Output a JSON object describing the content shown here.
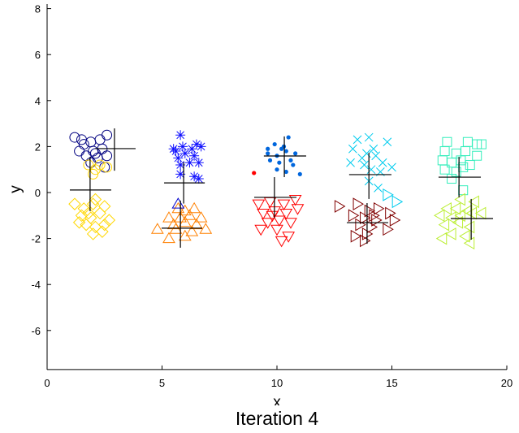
{
  "chart_data": {
    "type": "scatter",
    "title": "Iteration 4",
    "xlabel": "x",
    "ylabel": "y",
    "xlim": [
      0,
      20
    ],
    "ylim": [
      -7.7,
      8.2
    ],
    "xticks": [
      "0",
      "5",
      "10",
      "15",
      "20"
    ],
    "yticks": [
      "-6",
      "-4",
      "-2",
      "0",
      "2",
      "4",
      "6",
      "8"
    ],
    "grid": false,
    "box": false,
    "series": [
      {
        "marker": "circle",
        "color": "#000080",
        "points": [
          [
            1.2,
            2.4
          ],
          [
            1.6,
            2.1
          ],
          [
            1.9,
            2.2
          ],
          [
            2.3,
            2.3
          ],
          [
            2.6,
            2.5
          ],
          [
            1.4,
            1.8
          ],
          [
            2.0,
            1.8
          ],
          [
            2.4,
            1.9
          ],
          [
            1.7,
            1.6
          ],
          [
            2.2,
            1.5
          ],
          [
            2.6,
            1.6
          ],
          [
            1.9,
            1.3
          ],
          [
            2.5,
            1.1
          ],
          [
            2.1,
            1.7
          ],
          [
            1.5,
            2.3
          ]
        ]
      },
      {
        "marker": "circle",
        "color": "#FFD700",
        "points": [
          [
            1.8,
            1.2
          ],
          [
            2.1,
            1.0
          ],
          [
            2.3,
            1.2
          ],
          [
            2.0,
            0.8
          ],
          [
            2.6,
            1.1
          ]
        ]
      },
      {
        "marker": "diamond",
        "color": "#FFD700",
        "points": [
          [
            1.2,
            -0.5
          ],
          [
            1.6,
            -0.7
          ],
          [
            2.0,
            -0.5
          ],
          [
            2.5,
            -0.6
          ],
          [
            1.5,
            -1.0
          ],
          [
            1.9,
            -1.1
          ],
          [
            2.3,
            -0.9
          ],
          [
            2.7,
            -1.2
          ],
          [
            1.7,
            -1.4
          ],
          [
            2.1,
            -1.5
          ],
          [
            2.5,
            -1.4
          ],
          [
            1.4,
            -1.3
          ],
          [
            2.0,
            -1.8
          ],
          [
            2.4,
            -1.7
          ],
          [
            2.1,
            -0.3
          ],
          [
            1.8,
            -0.9
          ]
        ]
      },
      {
        "marker": "star",
        "color": "#1010FF",
        "points": [
          [
            5.8,
            2.5
          ],
          [
            5.5,
            1.9
          ],
          [
            5.9,
            2.0
          ],
          [
            6.3,
            1.9
          ],
          [
            6.7,
            2.0
          ],
          [
            5.7,
            1.5
          ],
          [
            6.0,
            1.7
          ],
          [
            6.4,
            1.6
          ],
          [
            5.8,
            1.2
          ],
          [
            6.2,
            1.3
          ],
          [
            6.6,
            1.3
          ],
          [
            5.8,
            0.8
          ],
          [
            6.4,
            0.7
          ],
          [
            6.6,
            0.6
          ],
          [
            5.6,
            1.8
          ],
          [
            6.5,
            2.1
          ]
        ]
      },
      {
        "marker": "triangle-up",
        "color": "#FF8000",
        "points": [
          [
            5.7,
            -0.7
          ],
          [
            6.0,
            -0.8
          ],
          [
            6.4,
            -0.7
          ],
          [
            5.3,
            -1.1
          ],
          [
            5.8,
            -1.1
          ],
          [
            6.2,
            -1.0
          ],
          [
            6.7,
            -1.1
          ],
          [
            5.5,
            -1.4
          ],
          [
            6.0,
            -1.3
          ],
          [
            6.5,
            -1.4
          ],
          [
            4.8,
            -1.6
          ],
          [
            5.6,
            -1.6
          ],
          [
            6.3,
            -1.7
          ],
          [
            5.3,
            -2.0
          ],
          [
            6.0,
            -1.9
          ],
          [
            6.9,
            -1.6
          ]
        ]
      },
      {
        "marker": "triangle-up",
        "color": "#0000CC",
        "points": [
          [
            5.7,
            -0.5
          ]
        ]
      },
      {
        "marker": "dot",
        "color": "#0066DD",
        "points": [
          [
            10.5,
            2.4
          ],
          [
            9.9,
            2.1
          ],
          [
            10.3,
            2.0
          ],
          [
            9.6,
            1.9
          ],
          [
            10.0,
            1.6
          ],
          [
            10.4,
            1.8
          ],
          [
            10.8,
            1.7
          ],
          [
            9.7,
            1.4
          ],
          [
            10.1,
            1.3
          ],
          [
            10.6,
            1.4
          ],
          [
            10.0,
            1.0
          ],
          [
            10.4,
            0.9
          ],
          [
            11.0,
            0.8
          ],
          [
            9.6,
            1.7
          ],
          [
            10.2,
            1.9
          ],
          [
            10.7,
            1.2
          ]
        ]
      },
      {
        "marker": "dot",
        "color": "#FF0000",
        "points": [
          [
            9.0,
            0.85
          ]
        ]
      },
      {
        "marker": "triangle-down",
        "color": "#FF0000",
        "points": [
          [
            9.2,
            -0.5
          ],
          [
            9.7,
            -0.4
          ],
          [
            10.3,
            -0.5
          ],
          [
            10.8,
            -0.3
          ],
          [
            9.4,
            -0.9
          ],
          [
            9.9,
            -0.8
          ],
          [
            10.4,
            -0.9
          ],
          [
            9.6,
            -1.3
          ],
          [
            10.1,
            -1.2
          ],
          [
            10.6,
            -1.3
          ],
          [
            9.3,
            -1.6
          ],
          [
            10.0,
            -1.6
          ],
          [
            10.5,
            -1.9
          ],
          [
            10.2,
            -2.1
          ],
          [
            9.8,
            -1.0
          ],
          [
            10.9,
            -0.7
          ]
        ]
      },
      {
        "marker": "x",
        "color": "#00CCEE",
        "points": [
          [
            13.5,
            2.3
          ],
          [
            14.0,
            2.4
          ],
          [
            14.8,
            2.2
          ],
          [
            13.3,
            1.9
          ],
          [
            13.9,
            1.7
          ],
          [
            14.3,
            1.6
          ],
          [
            14.6,
            1.3
          ],
          [
            13.2,
            1.3
          ],
          [
            13.8,
            1.2
          ],
          [
            14.1,
            1.0
          ],
          [
            14.5,
            0.9
          ],
          [
            15.0,
            1.1
          ],
          [
            14.0,
            0.5
          ],
          [
            14.4,
            0.2
          ],
          [
            13.7,
            1.5
          ],
          [
            14.2,
            1.9
          ]
        ]
      },
      {
        "marker": "triangle-right",
        "color": "#00CCEE",
        "points": [
          [
            14.8,
            -0.1
          ],
          [
            15.2,
            -0.4
          ]
        ]
      },
      {
        "marker": "triangle-right",
        "color": "#800000",
        "points": [
          [
            12.7,
            -0.6
          ],
          [
            13.5,
            -0.5
          ],
          [
            14.0,
            -0.8
          ],
          [
            14.4,
            -0.7
          ],
          [
            13.3,
            -1.0
          ],
          [
            13.8,
            -1.1
          ],
          [
            14.3,
            -1.2
          ],
          [
            14.9,
            -0.9
          ],
          [
            13.6,
            -1.4
          ],
          [
            14.1,
            -1.5
          ],
          [
            15.1,
            -1.2
          ],
          [
            13.4,
            -1.9
          ],
          [
            13.9,
            -1.8
          ],
          [
            14.8,
            -1.6
          ],
          [
            13.8,
            -2.1
          ],
          [
            14.2,
            -1.0
          ]
        ]
      },
      {
        "marker": "square",
        "color": "#33EEBB",
        "points": [
          [
            17.4,
            2.2
          ],
          [
            18.3,
            2.2
          ],
          [
            18.7,
            2.1
          ],
          [
            17.3,
            1.8
          ],
          [
            17.8,
            1.7
          ],
          [
            18.2,
            1.8
          ],
          [
            18.7,
            1.6
          ],
          [
            17.2,
            1.4
          ],
          [
            17.6,
            1.3
          ],
          [
            18.0,
            1.4
          ],
          [
            18.4,
            1.2
          ],
          [
            17.3,
            1.0
          ],
          [
            17.8,
            0.9
          ],
          [
            18.1,
            1.1
          ],
          [
            17.6,
            0.6
          ],
          [
            18.1,
            0.1
          ],
          [
            18.9,
            2.1
          ]
        ]
      },
      {
        "marker": "triangle-left",
        "color": "#BBEE33",
        "points": [
          [
            18.0,
            -0.3
          ],
          [
            18.6,
            -0.4
          ],
          [
            17.4,
            -0.7
          ],
          [
            17.8,
            -0.7
          ],
          [
            18.3,
            -0.8
          ],
          [
            17.1,
            -1.0
          ],
          [
            17.6,
            -1.1
          ],
          [
            18.0,
            -1.0
          ],
          [
            18.5,
            -0.9
          ],
          [
            17.3,
            -1.4
          ],
          [
            17.9,
            -1.3
          ],
          [
            18.4,
            -1.5
          ],
          [
            17.6,
            -1.8
          ],
          [
            18.2,
            -1.9
          ],
          [
            17.2,
            -2.0
          ],
          [
            18.4,
            -2.2
          ],
          [
            18.9,
            -0.9
          ]
        ]
      }
    ],
    "centroid_crosses": [
      {
        "center": [
          2.93,
          1.91
        ],
        "x_range": [
          2.09,
          3.85
        ],
        "y_range": [
          0.95,
          2.79
        ]
      },
      {
        "center": [
          1.87,
          0.11
        ],
        "x_range": [
          0.99,
          2.79
        ],
        "y_range": [
          -0.81,
          1.55
        ]
      },
      {
        "center": [
          5.94,
          0.42
        ],
        "x_range": [
          5.09,
          6.86
        ],
        "y_range": [
          -0.48,
          1.32
        ]
      },
      {
        "center": [
          5.8,
          -1.55
        ],
        "x_range": [
          4.98,
          6.75
        ],
        "y_range": [
          -2.4,
          -0.35
        ]
      },
      {
        "center": [
          10.32,
          1.59
        ],
        "x_range": [
          9.43,
          11.27
        ],
        "y_range": [
          0.67,
          2.44
        ]
      },
      {
        "center": [
          9.89,
          -0.21
        ],
        "x_range": [
          9.01,
          10.85
        ],
        "y_range": [
          -1.1,
          0.67
        ]
      },
      {
        "center": [
          14.0,
          0.78
        ],
        "x_range": [
          13.14,
          14.98
        ],
        "y_range": [
          -0.28,
          1.73
        ]
      },
      {
        "center": [
          13.92,
          -1.31
        ],
        "x_range": [
          13.04,
          14.84
        ],
        "y_range": [
          -2.23,
          -0.46
        ]
      },
      {
        "center": [
          17.92,
          0.67
        ],
        "x_range": [
          17.03,
          18.87
        ],
        "y_range": [
          -0.21,
          1.55
        ]
      },
      {
        "center": [
          18.45,
          -1.13
        ],
        "x_range": [
          17.56,
          19.4
        ],
        "y_range": [
          -2.05,
          -0.28
        ]
      }
    ]
  }
}
